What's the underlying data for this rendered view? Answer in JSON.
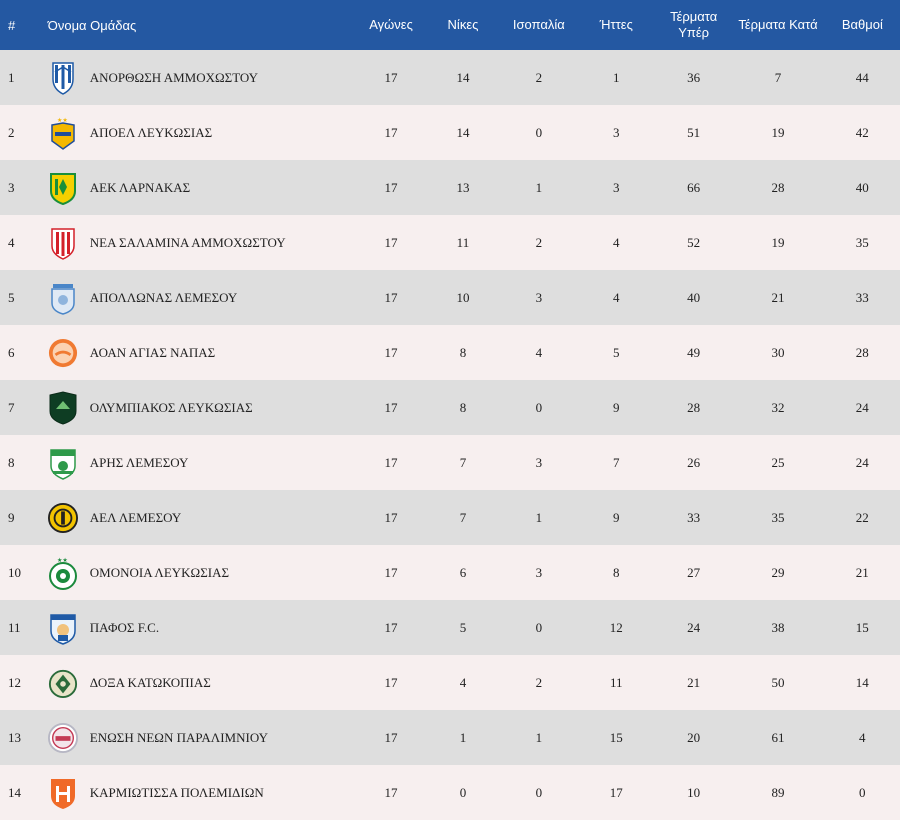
{
  "header": {
    "rank": "#",
    "team": "Όνομα Ομάδας",
    "played": "Αγώνες",
    "wins": "Νίκες",
    "draws": "Ισοπαλία",
    "losses": "Ήττες",
    "goals_for": "Τέρματα Υπέρ",
    "goals_against": "Τέρματα Κατά",
    "points": "Βαθμοί"
  },
  "rows": [
    {
      "rank": "1",
      "team": "ΑΝΟΡΘΩΣΗ ΑΜΜΟΧΩΣΤΟΥ",
      "played": "17",
      "wins": "14",
      "draws": "2",
      "losses": "1",
      "gf": "36",
      "ga": "7",
      "points": "44",
      "logo": "anorthosis-crest-icon"
    },
    {
      "rank": "2",
      "team": "ΑΠΟΕΛ ΛΕΥΚΩΣΙΑΣ",
      "played": "17",
      "wins": "14",
      "draws": "0",
      "losses": "3",
      "gf": "51",
      "ga": "19",
      "points": "42",
      "logo": "apoel-crest-icon"
    },
    {
      "rank": "3",
      "team": "ΑΕΚ ΛΑΡΝΑΚΑΣ",
      "played": "17",
      "wins": "13",
      "draws": "1",
      "losses": "3",
      "gf": "66",
      "ga": "28",
      "points": "40",
      "logo": "aek-crest-icon"
    },
    {
      "rank": "4",
      "team": "ΝΕΑ ΣΑΛΑΜΙΝΑ ΑΜΜΟΧΩΣΤΟΥ",
      "played": "17",
      "wins": "11",
      "draws": "2",
      "losses": "4",
      "gf": "52",
      "ga": "19",
      "points": "35",
      "logo": "nea-salamina-crest-icon"
    },
    {
      "rank": "5",
      "team": "ΑΠΟΛΛΩΝΑΣ ΛΕΜΕΣΟΥ",
      "played": "17",
      "wins": "10",
      "draws": "3",
      "losses": "4",
      "gf": "40",
      "ga": "21",
      "points": "33",
      "logo": "apollon-crest-icon"
    },
    {
      "rank": "6",
      "team": "ΑΟΑΝ ΑΓΙΑΣ ΝΑΠΑΣ",
      "played": "17",
      "wins": "8",
      "draws": "4",
      "losses": "5",
      "gf": "49",
      "ga": "30",
      "points": "28",
      "logo": "aoan-crest-icon"
    },
    {
      "rank": "7",
      "team": "ΟΛΥΜΠΙΑΚΟΣ ΛΕΥΚΩΣΙΑΣ",
      "played": "17",
      "wins": "8",
      "draws": "0",
      "losses": "9",
      "gf": "28",
      "ga": "32",
      "points": "24",
      "logo": "olympiakos-crest-icon"
    },
    {
      "rank": "8",
      "team": "ΑΡΗΣ ΛΕΜΕΣΟΥ",
      "played": "17",
      "wins": "7",
      "draws": "3",
      "losses": "7",
      "gf": "26",
      "ga": "25",
      "points": "24",
      "logo": "aris-crest-icon"
    },
    {
      "rank": "9",
      "team": "ΑΕΛ ΛΕΜΕΣΟΥ",
      "played": "17",
      "wins": "7",
      "draws": "1",
      "losses": "9",
      "gf": "33",
      "ga": "35",
      "points": "22",
      "logo": "ael-crest-icon"
    },
    {
      "rank": "10",
      "team": "ΟΜΟΝΟΙΑ ΛΕΥΚΩΣΙΑΣ",
      "played": "17",
      "wins": "6",
      "draws": "3",
      "losses": "8",
      "gf": "27",
      "ga": "29",
      "points": "21",
      "logo": "omonoia-crest-icon"
    },
    {
      "rank": "11",
      "team": "ΠΑΦΟΣ F.C.",
      "played": "17",
      "wins": "5",
      "draws": "0",
      "losses": "12",
      "gf": "24",
      "ga": "38",
      "points": "15",
      "logo": "pafos-crest-icon"
    },
    {
      "rank": "12",
      "team": "ΔΟΞΑ ΚΑΤΩΚΟΠΙΑΣ",
      "played": "17",
      "wins": "4",
      "draws": "2",
      "losses": "11",
      "gf": "21",
      "ga": "50",
      "points": "14",
      "logo": "doxa-crest-icon"
    },
    {
      "rank": "13",
      "team": "ΕΝΩΣΗ ΝΕΩΝ ΠΑΡΑΛΙΜΝΙΟΥ",
      "played": "17",
      "wins": "1",
      "draws": "1",
      "losses": "15",
      "gf": "20",
      "ga": "61",
      "points": "4",
      "logo": "enp-crest-icon"
    },
    {
      "rank": "14",
      "team": "ΚΑΡΜΙΩΤΙΣΣΑ ΠΟΛΕΜΙΔΙΩΝ",
      "played": "17",
      "wins": "0",
      "draws": "0",
      "losses": "17",
      "gf": "10",
      "ga": "89",
      "points": "0",
      "logo": "karmiotissa-crest-icon"
    }
  ],
  "colors": {
    "header_bg": "#2458a2",
    "row_odd": "#dedede",
    "row_even": "#f7efef"
  }
}
